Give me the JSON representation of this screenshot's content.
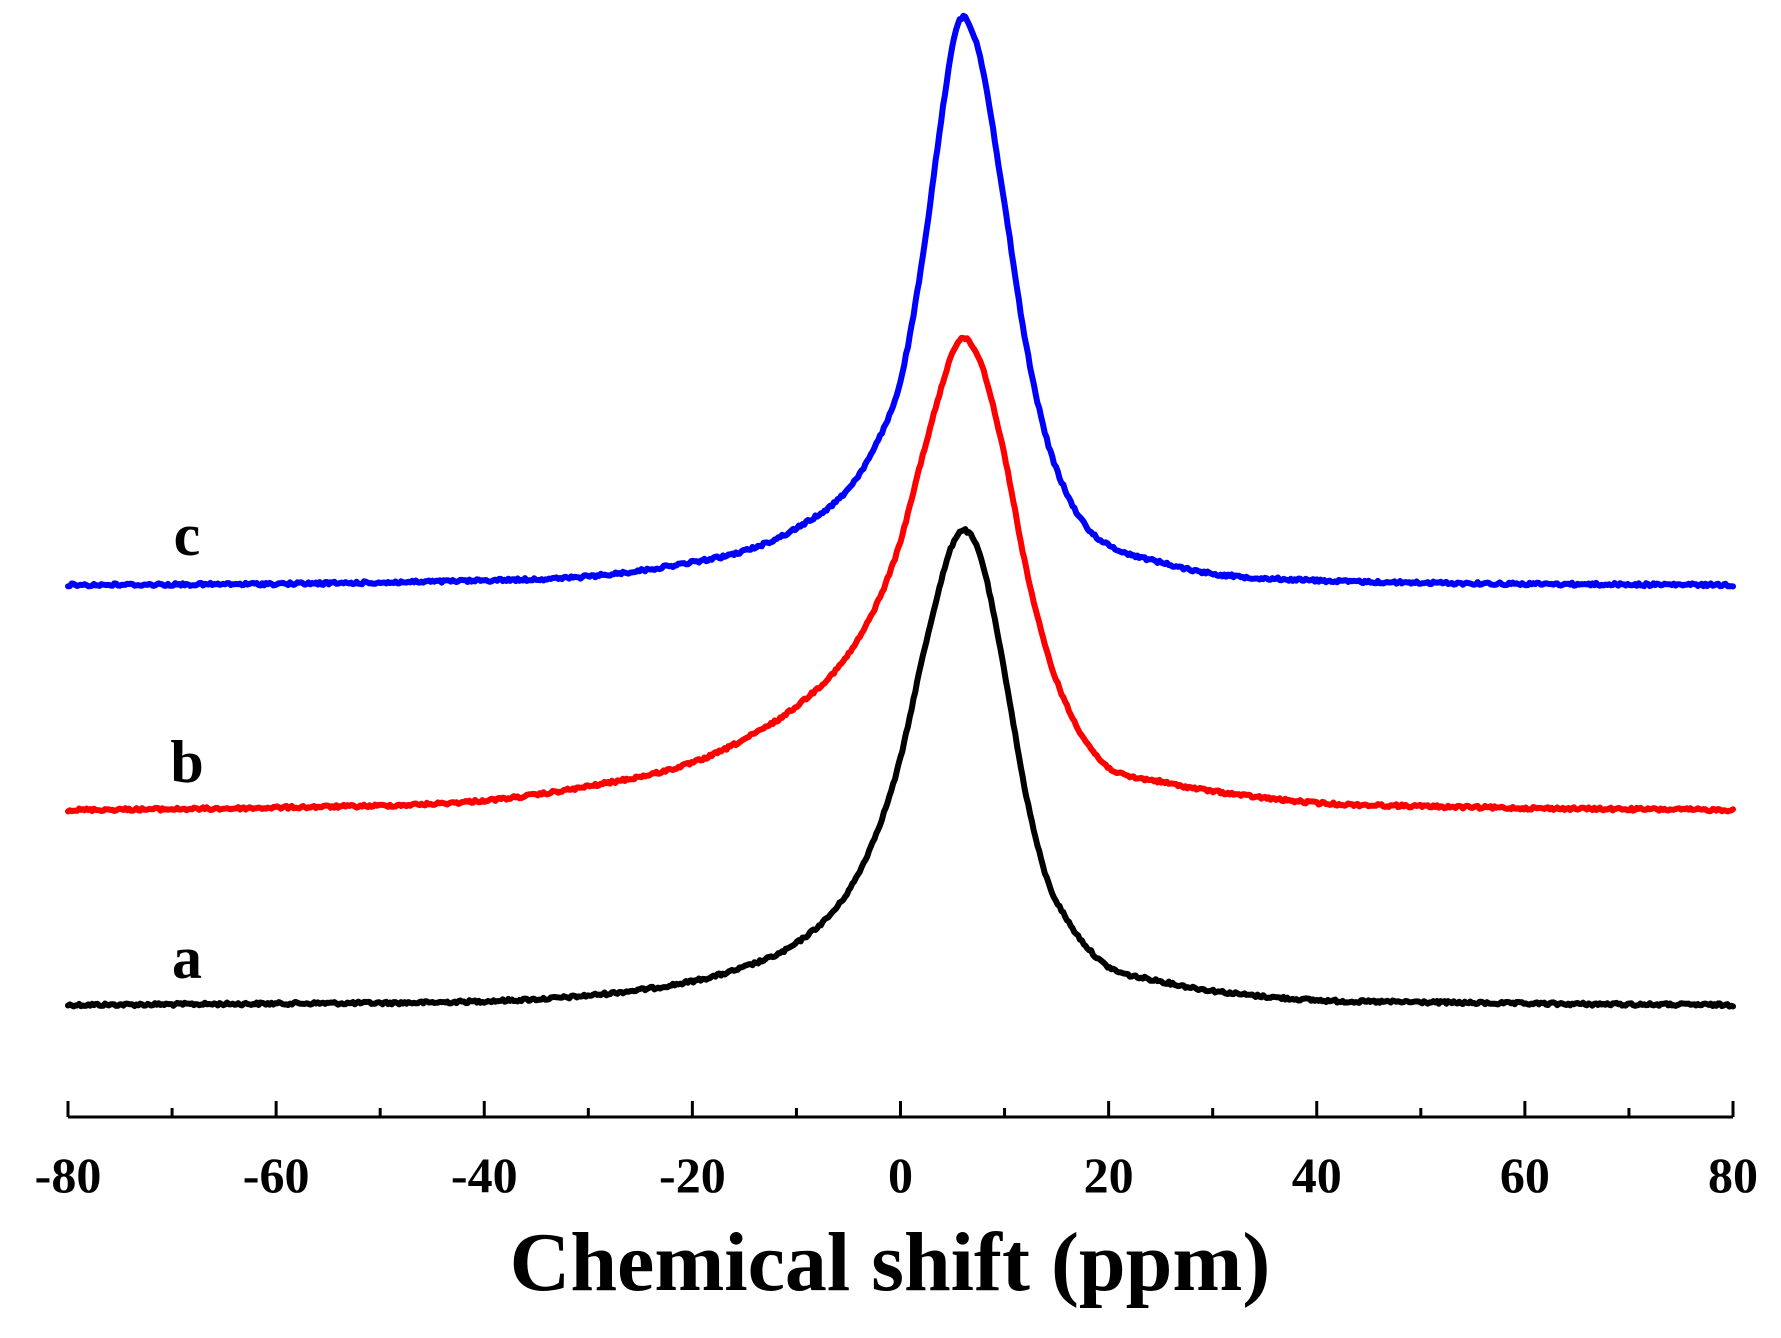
{
  "chart_data": {
    "type": "line",
    "title": "",
    "xlabel": "Chemical shift (ppm)",
    "ylabel": "",
    "xlim": [
      -80,
      80
    ],
    "x_ticks": [
      -80,
      -60,
      -40,
      -20,
      0,
      20,
      40,
      60,
      80
    ],
    "x_tick_labels": [
      "-80",
      "-60",
      "-40",
      "-20",
      "0",
      "20",
      "40",
      "60",
      "80"
    ],
    "x_minor_step": 10,
    "y_axis_visible": false,
    "grid": false,
    "series": [
      {
        "name": "a",
        "label": "a",
        "color": "#000000",
        "x": [
          -80,
          -60,
          -40,
          -30,
          -20,
          -15,
          -10,
          -5,
          -2,
          0,
          2,
          4,
          5,
          6,
          7,
          8,
          10,
          12,
          14,
          16,
          18,
          20,
          25,
          30,
          40,
          50,
          60,
          80
        ],
        "y": [
          0,
          0.3,
          0.8,
          2,
          5,
          8,
          13,
          24,
          38,
          52,
          72,
          90,
          97,
          100,
          98,
          92,
          70,
          45,
          27,
          18,
          12,
          8,
          5,
          3,
          1,
          0.6,
          0.3,
          0
        ]
      },
      {
        "name": "b",
        "label": "b",
        "color": "#ff0000",
        "x": [
          -80,
          -60,
          -40,
          -30,
          -20,
          -15,
          -10,
          -5,
          -2,
          0,
          2,
          4,
          5,
          6,
          7,
          8,
          10,
          12,
          14,
          16,
          18,
          20,
          25,
          30,
          40,
          50,
          60,
          80
        ],
        "y": [
          0,
          0.5,
          2,
          5,
          10,
          15,
          22,
          33,
          45,
          57,
          74,
          90,
          97,
          100,
          98,
          93,
          75,
          52,
          34,
          22,
          14,
          9,
          6,
          4,
          1.5,
          0.8,
          0.4,
          0
        ]
      },
      {
        "name": "c",
        "label": "c",
        "color": "#0000ff",
        "x": [
          -80,
          -60,
          -40,
          -30,
          -20,
          -15,
          -10,
          -5,
          -2,
          0,
          2,
          4,
          5,
          6,
          7,
          8,
          10,
          12,
          14,
          16,
          18,
          20,
          25,
          30,
          40,
          50,
          60,
          80
        ],
        "y": [
          0,
          0.2,
          0.8,
          1.5,
          4,
          6,
          10,
          17,
          26,
          36,
          56,
          83,
          95,
          100,
          97,
          90,
          67,
          43,
          26,
          16,
          10,
          7,
          4,
          2,
          0.8,
          0.4,
          0.2,
          0
        ]
      }
    ]
  }
}
